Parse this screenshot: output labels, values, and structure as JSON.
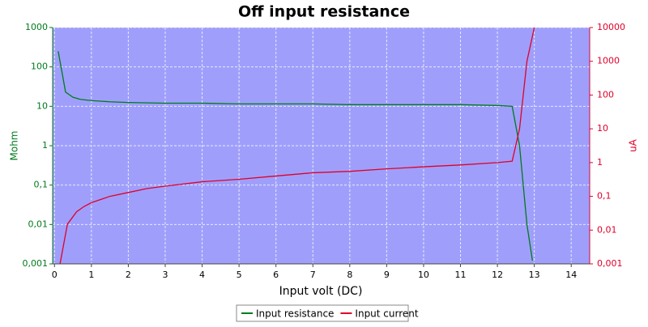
{
  "chart_data": {
    "type": "line",
    "title": "Off input resistance",
    "x_label": "Input volt (DC)",
    "y_label": "Mohm",
    "y2_label": "uA",
    "xlim": [
      -0.05,
      14.5
    ],
    "xticks": [
      0,
      1,
      2,
      3,
      4,
      5,
      6,
      7,
      8,
      9,
      10,
      11,
      12,
      13,
      14
    ],
    "ylim": [
      0.001,
      1000
    ],
    "yscale": "log",
    "yticks": [
      {
        "value": 0.001,
        "label": "0,001"
      },
      {
        "value": 0.01,
        "label": "0,01"
      },
      {
        "value": 0.1,
        "label": "0,1"
      },
      1,
      10,
      100,
      1000
    ],
    "y2lim": [
      0.001,
      10000
    ],
    "y2scale": "log",
    "y2ticks": [
      {
        "value": 0.001,
        "label": "0,001"
      },
      {
        "value": 0.01,
        "label": "0,01"
      },
      {
        "value": 0.1,
        "label": "0,1"
      },
      1,
      10,
      100,
      1000,
      10000
    ],
    "grid": true,
    "legend": "bottom",
    "series": [
      {
        "name": "Input resistance",
        "color": "#007a1c",
        "axis": "y",
        "x": [
          0.1,
          0.3,
          0.5,
          0.7,
          1.0,
          1.5,
          2,
          3,
          4,
          5,
          6,
          7,
          8,
          9,
          10,
          11,
          12,
          12.4,
          12.6,
          12.7,
          12.8,
          12.95
        ],
        "values": [
          250,
          23,
          17,
          15,
          14,
          13,
          12.5,
          12,
          12,
          11.5,
          11.5,
          11.5,
          11,
          11,
          11,
          11,
          10.5,
          10,
          1,
          0.1,
          0.01,
          0.0012
        ]
      },
      {
        "name": "Input current",
        "color": "#e0002a",
        "axis": "y2",
        "x": [
          0.15,
          0.35,
          0.6,
          0.8,
          1,
          1.5,
          2,
          2.5,
          3,
          4,
          5,
          6,
          7,
          8,
          9,
          10,
          11,
          12,
          12.4,
          12.6,
          12.8,
          13.0
        ],
        "values": [
          0.001,
          0.015,
          0.035,
          0.05,
          0.065,
          0.1,
          0.13,
          0.17,
          0.2,
          0.27,
          0.32,
          0.4,
          0.5,
          0.55,
          0.65,
          0.75,
          0.85,
          1,
          1.1,
          10,
          1000,
          10000
        ]
      }
    ]
  }
}
